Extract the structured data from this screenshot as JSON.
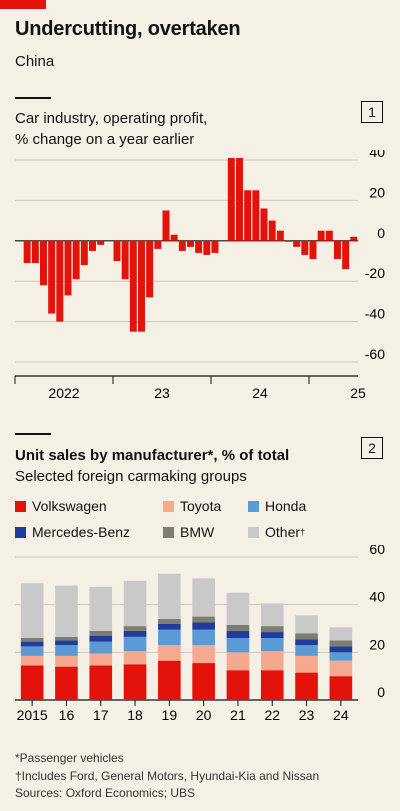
{
  "header": {
    "title": "Undercutting, overtaken",
    "subtitle": "China"
  },
  "chart1": {
    "number": "1",
    "title_line1": "Car industry, operating profit,",
    "title_line2": "% change on a year earlier"
  },
  "chart2": {
    "number": "2",
    "title_bold": "Unit sales by manufacturer*, % of total",
    "subtitle": "Selected foreign carmaking groups",
    "legend": [
      {
        "name": "Volkswagen",
        "color": "#e3120b"
      },
      {
        "name": "Toyota",
        "color": "#f6a98f"
      },
      {
        "name": "Honda",
        "color": "#5b9bd5"
      },
      {
        "name": "Mercedes-Benz",
        "color": "#1f3b9c"
      },
      {
        "name": "BMW",
        "color": "#7d7d70"
      },
      {
        "name": "Other",
        "sup": "†",
        "color": "#c9c9c9"
      }
    ]
  },
  "footnotes": {
    "line1": "*Passenger vehicles",
    "line2": "†Includes Ford, General Motors, Hyundai-Kia and Nissan",
    "line3": "Sources: Oxford Economics; UBS"
  },
  "chart_data": [
    {
      "type": "bar",
      "title": "Car industry, operating profit, % change on a year earlier",
      "ylim": [
        -60,
        40
      ],
      "yticks": [
        40,
        20,
        0,
        -20,
        -40,
        -60
      ],
      "xtick_labels": [
        "2022",
        "23",
        "24",
        "25"
      ],
      "color": "#e3120b",
      "periods": [
        "2022-01",
        "2022-02",
        "2022-03",
        "2022-04",
        "2022-05",
        "2022-06",
        "2022-07",
        "2022-08",
        "2022-09",
        "2022-10",
        "2022-11",
        "2022-12",
        "2023-01",
        "2023-02",
        "2023-03",
        "2023-04",
        "2023-05",
        "2023-06",
        "2023-07",
        "2023-08",
        "2023-09",
        "2023-10",
        "2023-11",
        "2023-12",
        "2024-01",
        "2024-02",
        "2024-03",
        "2024-04",
        "2024-05",
        "2024-06",
        "2024-07",
        "2024-08",
        "2024-09",
        "2024-10",
        "2024-11",
        "2024-12",
        "2025-01",
        "2025-02",
        "2025-03",
        "2025-04",
        "2025-05",
        "2025-06"
      ],
      "values": [
        null,
        -11,
        -11,
        -22,
        -36,
        -40,
        -27,
        -19,
        -12,
        -5,
        -2,
        null,
        -10,
        -19,
        -45,
        -45,
        -28,
        -4,
        15,
        3,
        -5,
        -3,
        -6,
        -7,
        -6,
        null,
        41,
        41,
        25,
        25,
        16,
        10,
        5,
        0,
        -3,
        -7,
        -9,
        5,
        5,
        -9,
        -14,
        2
      ],
      "grid": true
    },
    {
      "type": "stacked-bar",
      "title": "Unit sales by manufacturer*, % of total",
      "subtitle": "Selected foreign carmaking groups",
      "categories": [
        "2015",
        "16",
        "17",
        "18",
        "19",
        "20",
        "21",
        "22",
        "23",
        "24"
      ],
      "ylim": [
        0,
        60
      ],
      "yticks": [
        60,
        40,
        20,
        0
      ],
      "series": [
        {
          "name": "Volkswagen",
          "color": "#e3120b",
          "values": [
            14.5,
            14.0,
            14.5,
            15.0,
            16.5,
            15.5,
            12.5,
            12.5,
            11.5,
            10.0
          ]
        },
        {
          "name": "Toyota",
          "color": "#f6a98f",
          "values": [
            4.0,
            4.5,
            5.0,
            5.5,
            6.5,
            7.5,
            7.5,
            8.0,
            7.0,
            6.5
          ]
        },
        {
          "name": "Honda",
          "color": "#5b9bd5",
          "values": [
            4.0,
            4.5,
            5.0,
            6.0,
            6.5,
            6.5,
            6.0,
            5.5,
            4.5,
            3.5
          ]
        },
        {
          "name": "Mercedes-Benz",
          "color": "#1f3b9c",
          "values": [
            2.0,
            2.0,
            2.5,
            2.5,
            2.5,
            3.0,
            3.0,
            2.5,
            2.5,
            2.5
          ]
        },
        {
          "name": "BMW",
          "color": "#7d7d70",
          "values": [
            1.5,
            1.5,
            2.0,
            2.0,
            2.0,
            2.5,
            2.5,
            2.5,
            2.5,
            2.5
          ]
        },
        {
          "name": "Other",
          "color": "#c9c9c9",
          "values": [
            23.0,
            21.5,
            18.5,
            19.0,
            19.0,
            16.0,
            13.5,
            9.5,
            7.5,
            5.5
          ]
        }
      ],
      "grid": true
    }
  ]
}
